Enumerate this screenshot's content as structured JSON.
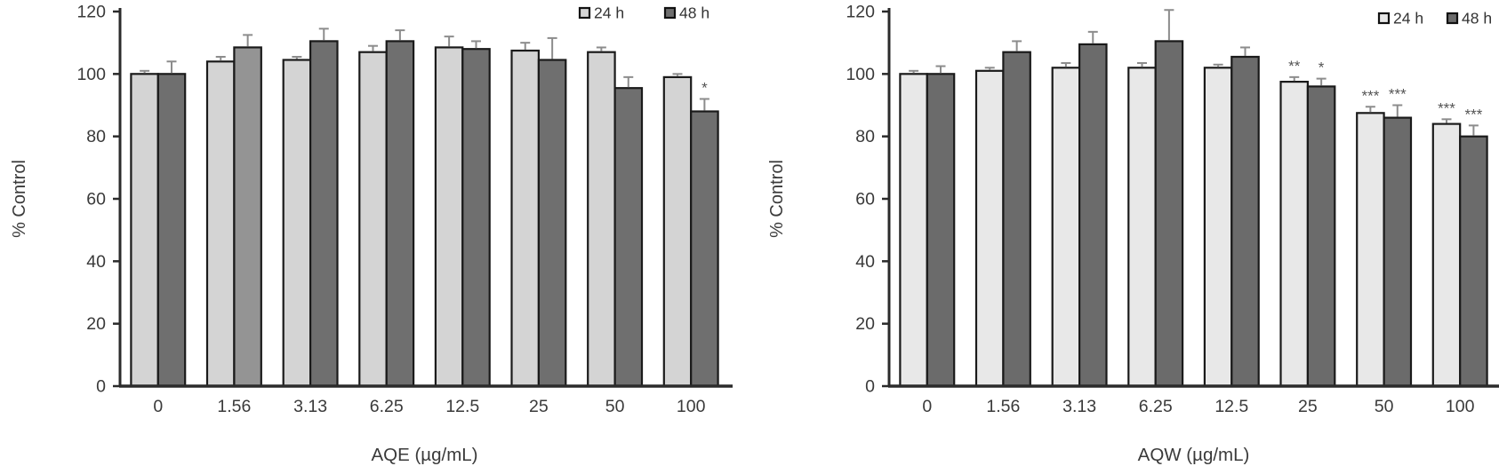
{
  "figure": {
    "background": "#ffffff"
  },
  "style": {
    "axis_color": "#2b2b2b",
    "label_color": "#3a3a3a",
    "error_color": "#8c8c8c",
    "sig_color": "#555555",
    "bar_border": "#1a1a1a"
  },
  "chart_data": [
    {
      "type": "bar",
      "title": "",
      "xlabel": "AQE (µg/mL)",
      "ylabel": "% Control",
      "ylim": [
        0,
        120
      ],
      "yticks": [
        0,
        20,
        40,
        60,
        80,
        100,
        120
      ],
      "grid": false,
      "legend_position": "top-right",
      "legend": [
        "24 h",
        "48 h"
      ],
      "categories": [
        "0",
        "1.56",
        "3.13",
        "6.25",
        "12.5",
        "25",
        "50",
        "100"
      ],
      "series": [
        {
          "name": "24 h",
          "color": "#d4d4d4",
          "values": [
            100,
            104,
            104.5,
            107,
            108.5,
            107.5,
            107,
            99
          ],
          "errors": [
            1,
            1.5,
            1,
            2,
            3.5,
            2.5,
            1.5,
            1
          ],
          "sig": [
            "",
            "",
            "",
            "",
            "",
            "",
            "",
            ""
          ]
        },
        {
          "name": "48 h",
          "color": "#6f6f6f",
          "color_overrides": {
            "1": "#949494"
          },
          "values": [
            100,
            108.5,
            110.5,
            110.5,
            108,
            104.5,
            95.5,
            88
          ],
          "errors": [
            4,
            4,
            4,
            3.5,
            2.5,
            7,
            3.5,
            4
          ],
          "sig": [
            "",
            "",
            "",
            "",
            "",
            "",
            "",
            "*"
          ]
        }
      ]
    },
    {
      "type": "bar",
      "title": "",
      "xlabel": "AQW (µg/mL)",
      "ylabel": "% Control",
      "ylim": [
        0,
        120
      ],
      "yticks": [
        0,
        20,
        40,
        60,
        80,
        100,
        120
      ],
      "grid": false,
      "legend_position": "top-right",
      "legend": [
        "24 h",
        "48 h"
      ],
      "categories": [
        "0",
        "1.56",
        "3.13",
        "6.25",
        "12.5",
        "25",
        "50",
        "100"
      ],
      "series": [
        {
          "name": "24 h",
          "color": "#e8e8e8",
          "values": [
            100,
            101,
            102,
            102,
            102,
            97.5,
            87.5,
            84
          ],
          "errors": [
            1,
            1,
            1.5,
            1.5,
            1,
            1.5,
            2,
            1.5
          ],
          "sig": [
            "",
            "",
            "",
            "",
            "",
            "**",
            "***",
            "***"
          ]
        },
        {
          "name": "48 h",
          "color": "#6b6b6b",
          "values": [
            100,
            107,
            109.5,
            110.5,
            105.5,
            96,
            86,
            80
          ],
          "errors": [
            2.5,
            3.5,
            4,
            10,
            3,
            2.5,
            4,
            3.5
          ],
          "sig": [
            "",
            "",
            "",
            "",
            "",
            "*",
            "***",
            "***"
          ]
        }
      ]
    }
  ]
}
